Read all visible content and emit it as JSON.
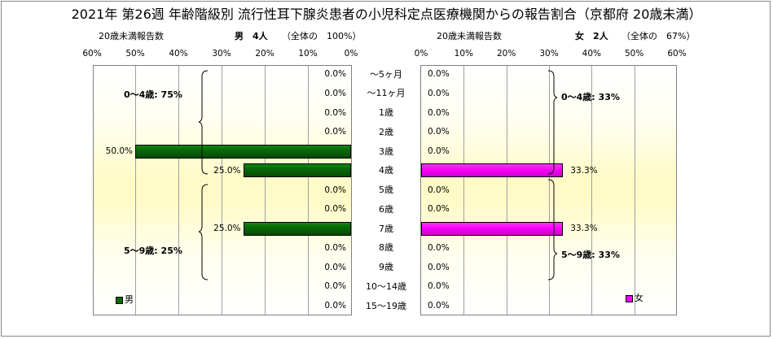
{
  "title": "2021年 第26週 年齢階級別 流行性耳下腺炎患者の小児科定点医療機関からの報告割合（京都府 20歳未満）",
  "male": {
    "header_left": "20歳未満報告数",
    "header_count": "男　4人",
    "header_share": "（全体の　100%）",
    "legend": "男",
    "color": "#0a6a0a",
    "groups": [
      {
        "label": "0～4歳: 75%"
      },
      {
        "label": "5～9歳: 25%"
      }
    ]
  },
  "female": {
    "header_left": "20歳未満報告数",
    "header_count": "女　2人",
    "header_share": "（全体の　67%）",
    "legend": "女",
    "color": "#f500f5",
    "groups": [
      {
        "label": "0～4歳: 33%"
      },
      {
        "label": "5～9歳: 33%"
      }
    ]
  },
  "chart_data": {
    "type": "bar",
    "orientation": "horizontal",
    "layout": "population-pyramid",
    "title": "2021年 第26週 年齢階級別 流行性耳下腺炎患者の小児科定点医療機関からの報告割合（京都府 20歳未満）",
    "categories": [
      "～5ヶ月",
      "～11ヶ月",
      "1歳",
      "2歳",
      "3歳",
      "4歳",
      "5歳",
      "6歳",
      "7歳",
      "8歳",
      "9歳",
      "10～14歳",
      "15～19歳"
    ],
    "xlim": [
      0,
      60
    ],
    "x_ticks": [
      "0%",
      "10%",
      "20%",
      "30%",
      "40%",
      "50%",
      "60%"
    ],
    "unit": "%",
    "grid": true,
    "series": [
      {
        "name": "男",
        "side": "left",
        "values": [
          0,
          0,
          0,
          0,
          50,
          25,
          0,
          0,
          25,
          0,
          0,
          0,
          0
        ],
        "labels": [
          "0.0%",
          "0.0%",
          "0.0%",
          "0.0%",
          "50.0%",
          "25.0%",
          "0.0%",
          "0.0%",
          "25.0%",
          "0.0%",
          "0.0%",
          "0.0%",
          "0.0%"
        ]
      },
      {
        "name": "女",
        "side": "right",
        "values": [
          0,
          0,
          0,
          0,
          0,
          33.3,
          0,
          0,
          33.3,
          0,
          0,
          0,
          0
        ],
        "labels": [
          "0.0%",
          "0.0%",
          "0.0%",
          "0.0%",
          "0.0%",
          "33.3%",
          "0.0%",
          "0.0%",
          "33.3%",
          "0.0%",
          "0.0%",
          "0.0%",
          "0.0%"
        ]
      }
    ]
  }
}
